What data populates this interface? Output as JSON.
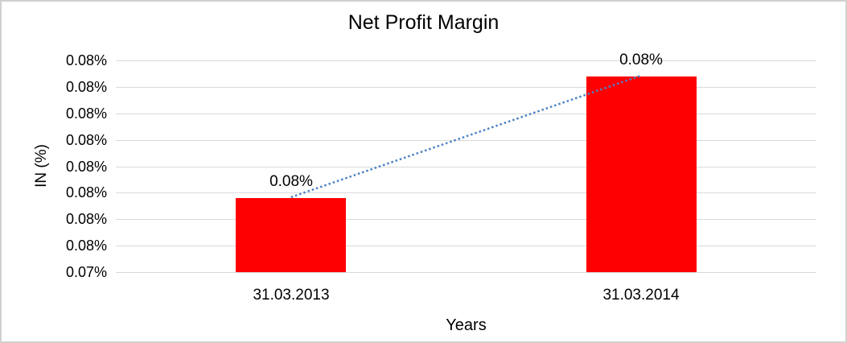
{
  "frame": {
    "border_color": "#d0d0d0",
    "background": "#ffffff"
  },
  "chart_data": {
    "type": "bar",
    "title": "Net Profit Margin",
    "xlabel": "Years",
    "ylabel": "IN (%)",
    "categories": [
      "31.03.2013",
      "31.03.2014"
    ],
    "series": [
      {
        "name": "Net Profit Margin",
        "values_display": [
          "0.08%",
          "0.08%"
        ],
        "values_estimated": [
          0.0759,
          0.0782
        ]
      }
    ],
    "y_axis": {
      "tick_labels_top_to_bottom": [
        "0.08%",
        "0.08%",
        "0.08%",
        "0.08%",
        "0.08%",
        "0.08%",
        "0.08%",
        "0.08%",
        "0.07%"
      ],
      "min_estimated": 0.0745,
      "max_estimated": 0.0785
    },
    "trendline": {
      "type": "linear",
      "style": "dotted",
      "color": "#4a82c4"
    },
    "colors": {
      "bar": "#ff0000",
      "gridline": "#d9d9d9",
      "text": "#000000"
    },
    "legend": "none",
    "grid": true
  }
}
